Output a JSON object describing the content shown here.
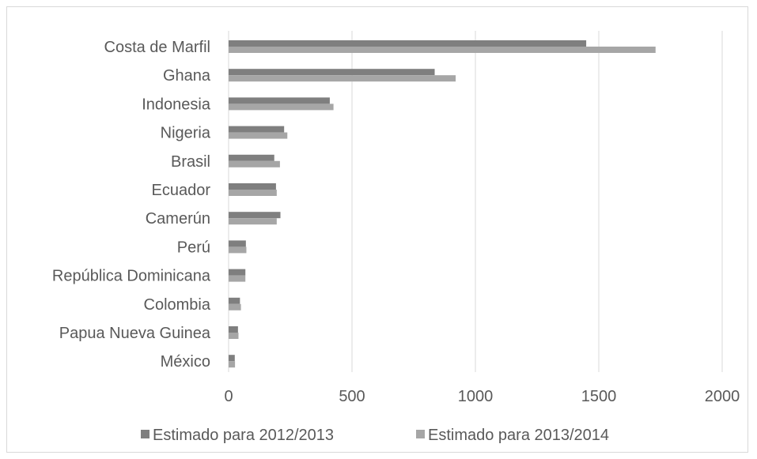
{
  "chart_data": {
    "type": "bar",
    "orientation": "horizontal",
    "title": "",
    "xlabel": "",
    "ylabel": "",
    "categories": [
      "Costa de Marfil",
      "Ghana",
      "Indonesia",
      "Nigeria",
      "Brasil",
      "Ecuador",
      "Camerún",
      "Perú",
      "República Dominicana",
      "Colombia",
      "Papua Nueva Guinea",
      "México"
    ],
    "series": [
      {
        "name": "Estimado para 2012/2013",
        "values": [
          1449,
          835,
          410,
          225,
          185,
          192,
          210,
          70,
          68,
          46,
          38,
          25
        ],
        "color": "#7f7f7f"
      },
      {
        "name": "Estimado para 2013/2014",
        "values": [
          1730,
          920,
          425,
          238,
          208,
          195,
          195,
          72,
          68,
          50,
          40,
          26
        ],
        "color": "#a6a6a6"
      }
    ],
    "xlim": [
      0,
      2000
    ],
    "xticks": [
      "0",
      "500",
      "1000",
      "1500",
      "2000"
    ],
    "grid": "vertical",
    "legend": "bottom"
  }
}
